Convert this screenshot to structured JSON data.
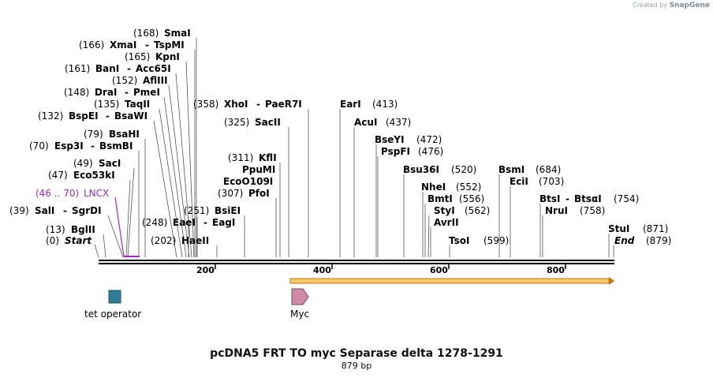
{
  "credit": {
    "prefix": "Created by",
    "brand": "SnapGene"
  },
  "title": "pcDNA5 FRT TO myc Separase  delta 1278-1291",
  "subtitle": "879 bp",
  "colors": {
    "feature_line": "#9a2ad0",
    "operator": "#2f7d97",
    "myc": "#cc8aa8",
    "orf": "#f6c96b",
    "orf_edge": "#c47a12"
  },
  "ruler": {
    "ticks": [
      "200",
      "400",
      "600",
      "800"
    ]
  },
  "sites": [
    {
      "pos": "(168)",
      "name": "SmaI"
    },
    {
      "pos": "(166)",
      "name": "XmaI",
      "alt": "TspMI"
    },
    {
      "pos": "(165)",
      "name": "KpnI"
    },
    {
      "pos": "(161)",
      "name": "BanI",
      "alt": "Acc65I"
    },
    {
      "pos": "(152)",
      "name": "AflIII"
    },
    {
      "pos": "(148)",
      "name": "DraI",
      "alt": "PmeI"
    },
    {
      "pos": "(135)",
      "name": "TaqII"
    },
    {
      "pos": "(132)",
      "name": "BspEI",
      "alt": "BsaWI"
    },
    {
      "pos": "(79)",
      "name": "BsaHI"
    },
    {
      "pos": "(70)",
      "name": "Esp3I",
      "alt": "BsmBI"
    },
    {
      "pos": "(49)",
      "name": "SacI"
    },
    {
      "pos": "(47)",
      "name": "Eco53kI"
    },
    {
      "pos": "(46 .. 70)",
      "name": "LNCX"
    },
    {
      "pos": "(39)",
      "name": "SalI",
      "alt": "SgrDI"
    },
    {
      "pos": "(13)",
      "name": "BglII"
    },
    {
      "pos": "(0)",
      "name": "Start"
    },
    {
      "pos": "(248)",
      "name": "EaeI",
      "alt": "EagI"
    },
    {
      "pos": "(251)",
      "name": "BsiEI"
    },
    {
      "pos": "(202)",
      "name": "HaeII"
    },
    {
      "pos": "(358)",
      "name": "XhoI",
      "alt": "PaeR7I"
    },
    {
      "pos": "(325)",
      "name": "SacII"
    },
    {
      "pos": "(311)",
      "name": "KflI"
    },
    {
      "name": "PpuMI"
    },
    {
      "name": "EcoO109I"
    },
    {
      "pos": "(307)",
      "name": "PfoI"
    },
    {
      "pos": "(413)",
      "name": "EarI"
    },
    {
      "pos": "(437)",
      "name": "AcuI"
    },
    {
      "pos": "(472)",
      "name": "BseYI"
    },
    {
      "pos": "(476)",
      "name": "PspFI"
    },
    {
      "pos": "(520)",
      "name": "Bsu36I"
    },
    {
      "pos": "(552)",
      "name": "NheI"
    },
    {
      "pos": "(556)",
      "name": "BmtI"
    },
    {
      "pos": "(562)",
      "name": "StyI"
    },
    {
      "name": "AvrII"
    },
    {
      "pos": "(599)",
      "name": "TsoI"
    },
    {
      "pos": "(684)",
      "name": "BsmI"
    },
    {
      "pos": "(703)",
      "name": "EciI"
    },
    {
      "pos": "(754)",
      "name": "BtsI",
      "alt": "BtsαI"
    },
    {
      "pos": "(758)",
      "name": "NruI"
    },
    {
      "pos": "(871)",
      "name": "StuI"
    },
    {
      "pos": "(879)",
      "name": "End"
    }
  ],
  "features": [
    {
      "name": "tet operator"
    },
    {
      "name": "Myc"
    }
  ]
}
